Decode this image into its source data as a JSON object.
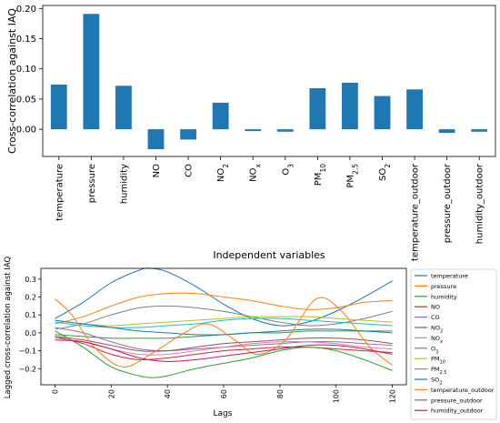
{
  "chart_data": [
    {
      "type": "bar",
      "ylabel": "Cross-correlation against IAQ",
      "xlabel": "Independent variables",
      "ylim": [
        -0.045,
        0.205
      ],
      "yticks": [
        "0.20",
        "0.15",
        "0.10",
        "0.05",
        "0.00"
      ],
      "ytick_values": [
        0.2,
        0.15,
        0.1,
        0.05,
        0.0
      ],
      "grid": false,
      "bar_color": "#1f77b4",
      "categories": [
        {
          "pre": "temperature",
          "sub": "",
          "post": ""
        },
        {
          "pre": "pressure",
          "sub": "",
          "post": ""
        },
        {
          "pre": "humidity",
          "sub": "",
          "post": ""
        },
        {
          "pre": "NO",
          "sub": "",
          "post": ""
        },
        {
          "pre": "CO",
          "sub": "",
          "post": ""
        },
        {
          "pre": "NO",
          "sub": "2",
          "post": ""
        },
        {
          "pre": "NO",
          "sub": "x",
          "post": ""
        },
        {
          "pre": "O",
          "sub": "3",
          "post": ""
        },
        {
          "pre": "PM",
          "sub": "10",
          "post": ""
        },
        {
          "pre": "PM",
          "sub": "2.5",
          "post": ""
        },
        {
          "pre": "SO",
          "sub": "2",
          "post": ""
        },
        {
          "pre": "temperature_outdoor",
          "sub": "",
          "post": ""
        },
        {
          "pre": "pressure_outdoor",
          "sub": "",
          "post": ""
        },
        {
          "pre": "humidity_outdoor",
          "sub": "",
          "post": ""
        }
      ],
      "values": [
        0.074,
        0.191,
        0.072,
        -0.033,
        -0.017,
        0.044,
        -0.003,
        -0.004,
        0.068,
        0.077,
        0.055,
        0.066,
        -0.006,
        -0.004
      ]
    },
    {
      "type": "line",
      "ylabel": "Lagged cross-correlation against IAQ",
      "xlabel": "Lags",
      "xlim": [
        -5,
        125
      ],
      "ylim": [
        -0.29,
        0.36
      ],
      "xticks": [
        "0",
        "20",
        "40",
        "60",
        "80",
        "100",
        "120"
      ],
      "xtick_values": [
        0,
        20,
        40,
        60,
        80,
        100,
        120
      ],
      "yticks": [
        "0.3",
        "0.2",
        "0.1",
        "0.0",
        "−0.1",
        "−0.2"
      ],
      "ytick_values": [
        0.3,
        0.2,
        0.1,
        0.0,
        -0.1,
        -0.2
      ],
      "grid": false,
      "legend_position": "right",
      "series": [
        {
          "name": {
            "pre": "temperature",
            "sub": "",
            "post": ""
          },
          "color": "#1f77b4",
          "x": [
            0,
            10,
            20,
            30,
            34,
            40,
            50,
            60,
            70,
            80,
            90,
            100,
            110,
            120
          ],
          "y": [
            0.08,
            0.17,
            0.28,
            0.35,
            0.36,
            0.34,
            0.26,
            0.16,
            0.08,
            0.04,
            0.06,
            0.12,
            0.2,
            0.29
          ]
        },
        {
          "name": {
            "pre": "pressure",
            "sub": "",
            "post": ""
          },
          "color": "#ff7f0e",
          "x": [
            0,
            10,
            20,
            30,
            40,
            50,
            60,
            70,
            80,
            90,
            100,
            110,
            120
          ],
          "y": [
            0.05,
            0.09,
            0.15,
            0.2,
            0.22,
            0.22,
            0.2,
            0.18,
            0.15,
            0.13,
            0.14,
            0.17,
            0.18
          ]
        },
        {
          "name": {
            "pre": "humidity",
            "sub": "",
            "post": ""
          },
          "color": "#2ca02c",
          "x": [
            0,
            10,
            20,
            30,
            40,
            50,
            60,
            70,
            80,
            90,
            100,
            110,
            120
          ],
          "y": [
            -0.01,
            -0.02,
            -0.03,
            -0.03,
            -0.03,
            -0.02,
            -0.01,
            0.0,
            0.0,
            0.01,
            0.01,
            0.01,
            0.01
          ]
        },
        {
          "name": {
            "pre": "NO",
            "sub": "",
            "post": ""
          },
          "color": "#d62728",
          "x": [
            0,
            10,
            20,
            30,
            40,
            50,
            60,
            70,
            80,
            90,
            100,
            110,
            120
          ],
          "y": [
            -0.02,
            -0.06,
            -0.12,
            -0.15,
            -0.14,
            -0.12,
            -0.1,
            -0.09,
            -0.08,
            -0.08,
            -0.09,
            -0.1,
            -0.11
          ]
        },
        {
          "name": {
            "pre": "CO",
            "sub": "",
            "post": ""
          },
          "color": "#9467bd",
          "x": [
            0,
            10,
            20,
            30,
            40,
            50,
            60,
            70,
            80,
            90,
            100,
            110,
            120
          ],
          "y": [
            0.03,
            0.0,
            -0.05,
            -0.09,
            -0.1,
            -0.09,
            -0.08,
            -0.07,
            -0.06,
            -0.05,
            -0.05,
            -0.06,
            -0.07
          ]
        },
        {
          "name": {
            "pre": "NO",
            "sub": "2",
            "post": ""
          },
          "color": "#8c564b",
          "x": [
            0,
            10,
            20,
            30,
            40,
            50,
            60,
            70,
            80,
            90,
            100,
            110,
            120
          ],
          "y": [
            -0.02,
            -0.04,
            -0.07,
            -0.1,
            -0.1,
            -0.08,
            -0.06,
            -0.05,
            -0.04,
            -0.03,
            -0.03,
            -0.04,
            -0.06
          ]
        },
        {
          "name": {
            "pre": "NO",
            "sub": "x",
            "post": ""
          },
          "color": "#e377c2",
          "x": [
            0,
            10,
            20,
            30,
            40,
            50,
            60,
            70,
            80,
            90,
            100,
            110,
            120
          ],
          "y": [
            -0.03,
            -0.05,
            -0.09,
            -0.12,
            -0.12,
            -0.1,
            -0.08,
            -0.06,
            -0.05,
            -0.05,
            -0.06,
            -0.08,
            -0.09
          ]
        },
        {
          "name": {
            "pre": "O",
            "sub": "3",
            "post": ""
          },
          "color": "#7f7f7f",
          "x": [
            0,
            10,
            20,
            30,
            40,
            50,
            60,
            70,
            80,
            90,
            100,
            110,
            120
          ],
          "y": [
            0.02,
            0.05,
            0.1,
            0.14,
            0.15,
            0.14,
            0.12,
            0.09,
            0.06,
            0.04,
            0.05,
            0.08,
            0.12
          ]
        },
        {
          "name": {
            "pre": "PM",
            "sub": "10",
            "post": ""
          },
          "color": "#bcbd22",
          "x": [
            0,
            10,
            20,
            30,
            40,
            50,
            60,
            70,
            80,
            90,
            100,
            110,
            120
          ],
          "y": [
            0.07,
            0.05,
            0.04,
            0.05,
            0.06,
            0.07,
            0.08,
            0.09,
            0.09,
            0.09,
            0.08,
            0.07,
            0.06
          ]
        },
        {
          "name": {
            "pre": "PM",
            "sub": "2.5",
            "post": ""
          },
          "color": "#17becf",
          "x": [
            0,
            10,
            20,
            30,
            40,
            50,
            60,
            70,
            80,
            90,
            100,
            110,
            120
          ],
          "y": [
            0.06,
            0.04,
            0.03,
            0.03,
            0.04,
            0.05,
            0.07,
            0.08,
            0.08,
            0.07,
            0.06,
            0.05,
            0.04
          ]
        },
        {
          "name": {
            "pre": "SO",
            "sub": "2",
            "post": ""
          },
          "color": "#1f77b4",
          "x": [
            0,
            10,
            20,
            30,
            40,
            50,
            60,
            70,
            80,
            90,
            100,
            110,
            120
          ],
          "y": [
            0.07,
            0.05,
            0.03,
            0.01,
            0.0,
            -0.01,
            -0.01,
            0.0,
            0.01,
            0.02,
            0.02,
            0.01,
            0.0
          ]
        },
        {
          "name": {
            "pre": "temperature_outdoor",
            "sub": "",
            "post": ""
          },
          "color": "#ff7f0e",
          "x": [
            0,
            6,
            14,
            24,
            34,
            44,
            54,
            64,
            72,
            82,
            93,
            102,
            112,
            120
          ],
          "y": [
            0.19,
            0.1,
            -0.08,
            -0.19,
            -0.12,
            -0.02,
            0.05,
            -0.04,
            -0.12,
            -0.04,
            0.19,
            0.12,
            -0.08,
            -0.18
          ]
        },
        {
          "name": {
            "pre": "pressure_outdoor",
            "sub": "",
            "post": ""
          },
          "color": "#2ca02c",
          "x": [
            0,
            10,
            20,
            30,
            35,
            40,
            50,
            60,
            70,
            80,
            90,
            100,
            110,
            120
          ],
          "y": [
            0.01,
            -0.08,
            -0.19,
            -0.24,
            -0.25,
            -0.24,
            -0.2,
            -0.17,
            -0.14,
            -0.1,
            -0.08,
            -0.1,
            -0.15,
            -0.21
          ]
        },
        {
          "name": {
            "pre": "humidity_outdoor",
            "sub": "",
            "post": ""
          },
          "color": "#c2185b",
          "x": [
            0,
            10,
            20,
            30,
            40,
            50,
            60,
            70,
            80,
            90,
            100,
            110,
            120
          ],
          "y": [
            -0.04,
            -0.05,
            -0.09,
            -0.14,
            -0.16,
            -0.15,
            -0.13,
            -0.11,
            -0.09,
            -0.07,
            -0.07,
            -0.09,
            -0.12
          ]
        }
      ]
    }
  ]
}
